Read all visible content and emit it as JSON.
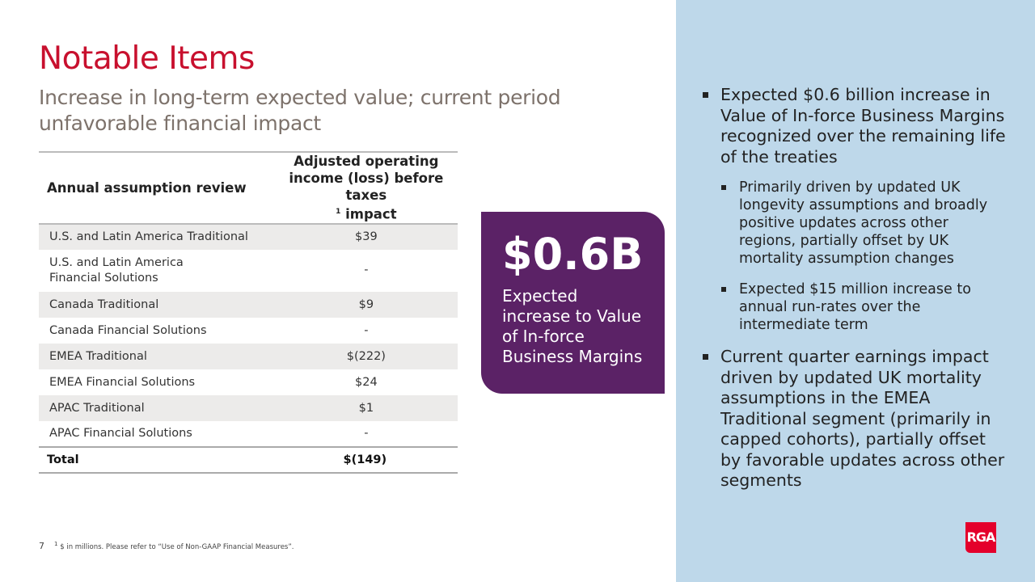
{
  "title": "Notable Items",
  "subtitle": "Increase in long-term expected value; current period unfavorable financial impact",
  "table": {
    "headers": [
      "Annual assumption review",
      "Adjusted operating income (loss) before taxes",
      "1",
      " impact"
    ],
    "rows": [
      {
        "label": "U.S. and Latin America Traditional",
        "value": "$39"
      },
      {
        "label": "U.S. and Latin America Financial Solutions",
        "value": "-"
      },
      {
        "label": "Canada Traditional",
        "value": "$9"
      },
      {
        "label": "Canada Financial Solutions",
        "value": "-"
      },
      {
        "label": "EMEA Traditional",
        "value": "$(222)"
      },
      {
        "label": "EMEA Financial Solutions",
        "value": "$24"
      },
      {
        "label": "APAC Traditional",
        "value": "$1"
      },
      {
        "label": "APAC Financial Solutions",
        "value": "-"
      }
    ],
    "total": {
      "label": "Total",
      "value": "$(149)"
    }
  },
  "callout": {
    "value": "$0.6B",
    "text": "Expected increase to Value of In-force Business Margins",
    "color": "#5b2266"
  },
  "bullets": [
    {
      "text": "Expected $0.6 billion increase in Value of In-force Business Margins recognized over the remaining life of the treaties",
      "sub": [
        "Primarily driven by updated UK longevity assumptions and broadly positive updates across other regions, partially offset by UK mortality assumption changes",
        "Expected $15 million increase to annual run-rates over the intermediate term"
      ]
    },
    {
      "text": "Current quarter earnings impact driven by updated UK mortality assumptions in the EMEA Traditional segment (primarily in capped cohorts), partially offset by favorable updates across other segments"
    }
  ],
  "footer": {
    "page": "7",
    "sup": "1",
    "note": "$ in millions. Please refer to “Use of Non-GAAP Financial Measures”."
  },
  "logo": "RGA",
  "colors": {
    "title": "#c8102e",
    "panel": "#bed8ea",
    "logo": "#e4002b"
  }
}
